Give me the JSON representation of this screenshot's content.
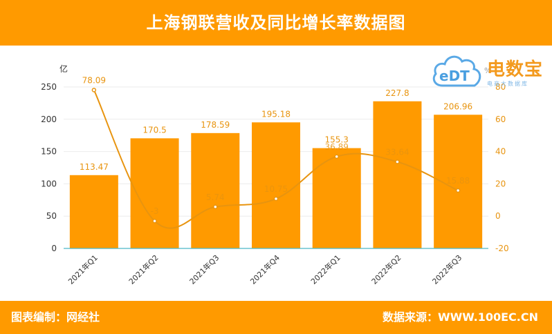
{
  "header": {
    "title": "上海钢联营收及同比增长率数据图"
  },
  "footer": {
    "left": "图表编制：网经社",
    "right": "数据来源：WWW.100EC.CN"
  },
  "logo": {
    "brand": "电数宝",
    "mark": "eDT",
    "subtitle": "电商大数据库"
  },
  "colors": {
    "accent": "#ff9a00",
    "bar": "#ff9a00",
    "line": "#e8940f",
    "axis": "#4cb8c8",
    "grid": "#ebebeb",
    "tick": "#333333"
  },
  "chart_data": {
    "type": "bar",
    "categories": [
      "2021年Q1",
      "2021年Q2",
      "2021年Q3",
      "2021年Q4",
      "2022年Q1",
      "2022年Q2",
      "2022年Q3"
    ],
    "ylabel": "亿",
    "y2label": "%",
    "ylim": [
      0,
      250
    ],
    "yticks": [
      0,
      50,
      100,
      150,
      200,
      250
    ],
    "y2lim": [
      -20,
      80
    ],
    "y2ticks": [
      -20,
      0,
      20,
      40,
      60,
      80
    ],
    "grid": true,
    "series": [
      {
        "type": "bar",
        "axis": "left",
        "values": [
          113.47,
          170.5,
          178.59,
          195.18,
          155.3,
          227.8,
          206.96
        ],
        "labels": [
          "113.47",
          "170.5",
          "178.59",
          "195.18",
          "155.3",
          "227.8",
          "206.96"
        ]
      },
      {
        "type": "line",
        "axis": "right",
        "values": [
          78.09,
          -3,
          5.74,
          10.75,
          36.89,
          33.64,
          15.88
        ],
        "labels": [
          "78.09",
          "-3",
          "5.74",
          "10.75",
          "36.89",
          "33.64",
          "15.88"
        ]
      }
    ]
  }
}
